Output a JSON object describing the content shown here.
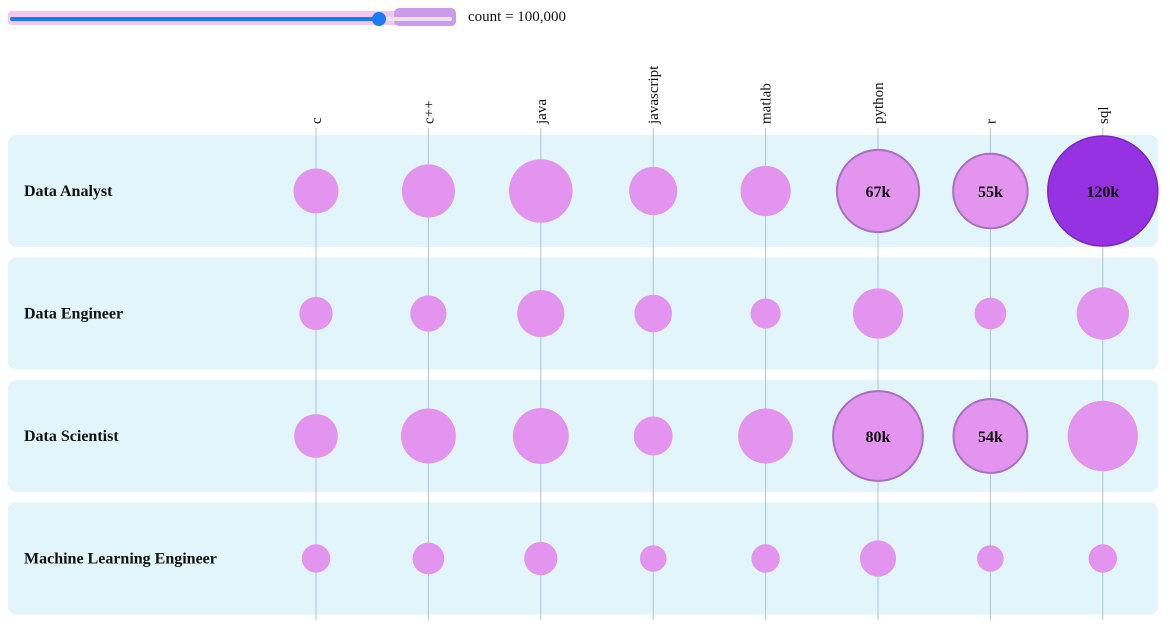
{
  "control": {
    "label": "count = 100,000",
    "value": 100000,
    "slider_fraction": 0.84
  },
  "chart_data": {
    "type": "bubble-matrix",
    "columns": [
      "c",
      "c++",
      "java",
      "javascript",
      "matlab",
      "python",
      "r",
      "sql"
    ],
    "rows": [
      "Data Analyst",
      "Data Engineer",
      "Data Scientist",
      "Machine Learning Engineer"
    ],
    "values": [
      [
        20000,
        28000,
        40000,
        23000,
        25000,
        67000,
        55000,
        120000
      ],
      [
        11000,
        13000,
        22000,
        14000,
        9000,
        25000,
        10000,
        27000
      ],
      [
        19000,
        30000,
        31000,
        15000,
        30000,
        80000,
        54000,
        49000
      ],
      [
        8000,
        10000,
        11000,
        7000,
        8000,
        13000,
        7000,
        8000
      ]
    ],
    "labels": [
      [
        "",
        "",
        "",
        "",
        "",
        "67k",
        "55k",
        "120k"
      ],
      [
        "",
        "",
        "",
        "",
        "",
        "",
        "",
        ""
      ],
      [
        "",
        "",
        "",
        "",
        "",
        "80k",
        "54k",
        ""
      ],
      [
        "",
        "",
        "",
        "",
        "",
        "",
        "",
        ""
      ]
    ],
    "threshold": 100000,
    "colors": {
      "bubble": "#e294ee",
      "highlight": "#9632e2",
      "highlight_stroke": "#7a24c4",
      "labeled_stroke": "#a86fc4",
      "row_band": "#e2f5fb",
      "gridline": "#a8c6d3"
    }
  }
}
